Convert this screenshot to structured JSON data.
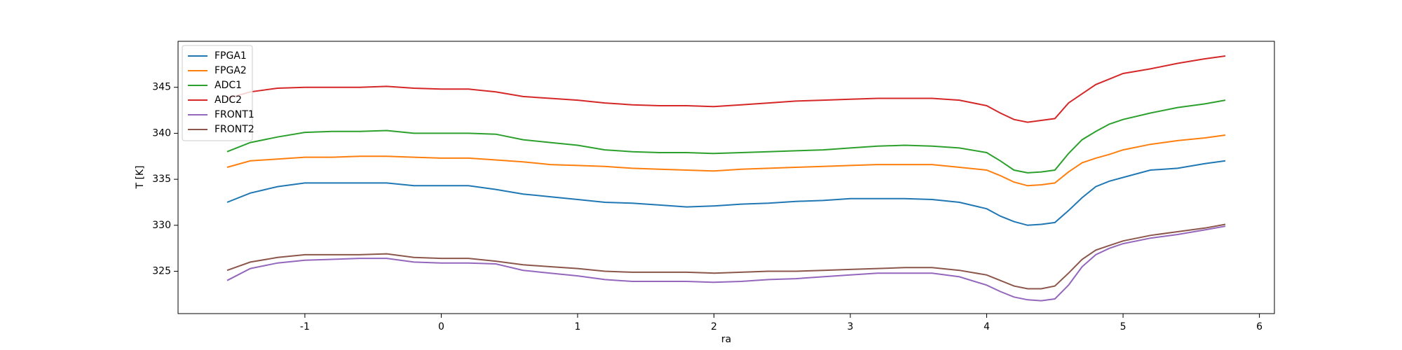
{
  "chart_data": {
    "type": "line",
    "x_label": "ra",
    "y_label": "T [K]",
    "x": [
      -1.57,
      -1.4,
      -1.2,
      -1.0,
      -0.8,
      -0.6,
      -0.4,
      -0.2,
      0,
      0.2,
      0.4,
      0.6,
      0.8,
      1.0,
      1.2,
      1.4,
      1.6,
      1.8,
      2.0,
      2.2,
      2.4,
      2.6,
      2.8,
      3.0,
      3.2,
      3.4,
      3.6,
      3.8,
      4.0,
      4.1,
      4.2,
      4.3,
      4.4,
      4.5,
      4.6,
      4.7,
      4.8,
      4.9,
      5.0,
      5.2,
      5.4,
      5.6,
      5.75
    ],
    "series": [
      {
        "name": "FPGA1",
        "color": "#1f77b4",
        "values": [
          332.5,
          333.5,
          334.2,
          334.6,
          334.6,
          334.6,
          334.6,
          334.3,
          334.3,
          334.3,
          333.9,
          333.4,
          333.1,
          332.8,
          332.5,
          332.4,
          332.2,
          332.0,
          332.1,
          332.3,
          332.4,
          332.6,
          332.7,
          332.9,
          332.9,
          332.9,
          332.8,
          332.5,
          331.8,
          331.0,
          330.4,
          330.0,
          330.1,
          330.3,
          331.6,
          333.0,
          334.2,
          334.8,
          335.2,
          336.0,
          336.2,
          336.7,
          337.0
        ]
      },
      {
        "name": "FPGA2",
        "color": "#ff7f0e",
        "values": [
          336.3,
          337.0,
          337.2,
          337.4,
          337.4,
          337.5,
          337.5,
          337.4,
          337.3,
          337.3,
          337.1,
          336.9,
          336.6,
          336.5,
          336.4,
          336.2,
          336.1,
          336.0,
          335.9,
          336.1,
          336.2,
          336.3,
          336.4,
          336.5,
          336.6,
          336.6,
          336.6,
          336.3,
          336.0,
          335.4,
          334.7,
          334.3,
          334.4,
          334.6,
          335.8,
          336.8,
          337.3,
          337.7,
          338.2,
          338.8,
          339.2,
          339.5,
          339.8
        ]
      },
      {
        "name": "ADC1",
        "color": "#2ca02c",
        "values": [
          338.0,
          339.0,
          339.6,
          340.1,
          340.2,
          340.2,
          340.3,
          340.0,
          340.0,
          340.0,
          339.9,
          339.3,
          339.0,
          338.7,
          338.2,
          338.0,
          337.9,
          337.9,
          337.8,
          337.9,
          338.0,
          338.1,
          338.2,
          338.4,
          338.6,
          338.7,
          338.6,
          338.4,
          337.9,
          337.0,
          336.0,
          335.7,
          335.8,
          336.0,
          337.8,
          339.3,
          340.2,
          341.0,
          341.5,
          342.2,
          342.8,
          343.2,
          343.6
        ]
      },
      {
        "name": "ADC2",
        "color": "#d62728",
        "values": [
          343.8,
          344.5,
          344.9,
          345.0,
          345.0,
          345.0,
          345.1,
          344.9,
          344.8,
          344.8,
          344.5,
          344.0,
          343.8,
          343.6,
          343.3,
          343.1,
          343.0,
          343.0,
          342.9,
          343.1,
          343.3,
          343.5,
          343.6,
          343.7,
          343.8,
          343.8,
          343.8,
          343.6,
          343.0,
          342.2,
          341.5,
          341.2,
          341.4,
          341.6,
          343.3,
          344.3,
          345.3,
          345.9,
          346.5,
          347.0,
          347.6,
          348.1,
          348.4
        ]
      },
      {
        "name": "FRONT1",
        "color": "#9467bd",
        "values": [
          324.0,
          325.3,
          325.9,
          326.2,
          326.3,
          326.4,
          326.4,
          326.0,
          325.9,
          325.9,
          325.8,
          325.1,
          324.8,
          324.5,
          324.1,
          323.9,
          323.9,
          323.9,
          323.8,
          323.9,
          324.1,
          324.2,
          324.4,
          324.6,
          324.8,
          324.8,
          324.8,
          324.4,
          323.5,
          322.8,
          322.2,
          321.9,
          321.8,
          322.0,
          323.5,
          325.5,
          326.8,
          327.5,
          328.0,
          328.6,
          329.0,
          329.5,
          329.9
        ]
      },
      {
        "name": "FRONT2",
        "color": "#8c564b",
        "values": [
          325.1,
          326.0,
          326.5,
          326.8,
          326.8,
          326.8,
          326.9,
          326.5,
          326.4,
          326.4,
          326.1,
          325.7,
          325.5,
          325.3,
          325.0,
          324.9,
          324.9,
          324.9,
          324.8,
          324.9,
          325.0,
          325.0,
          325.1,
          325.2,
          325.3,
          325.4,
          325.4,
          325.1,
          324.6,
          324.0,
          323.4,
          323.1,
          323.1,
          323.4,
          324.8,
          326.3,
          327.3,
          327.8,
          328.3,
          328.9,
          329.3,
          329.7,
          330.1
        ]
      }
    ],
    "xlim": [
      -1.93,
      6.11
    ],
    "xticks": [
      -1,
      0,
      1,
      2,
      3,
      4,
      5,
      6
    ],
    "ylim": [
      320.4,
      350.0
    ],
    "yticks": [
      325,
      330,
      335,
      340,
      345
    ],
    "legend": "upper left"
  }
}
